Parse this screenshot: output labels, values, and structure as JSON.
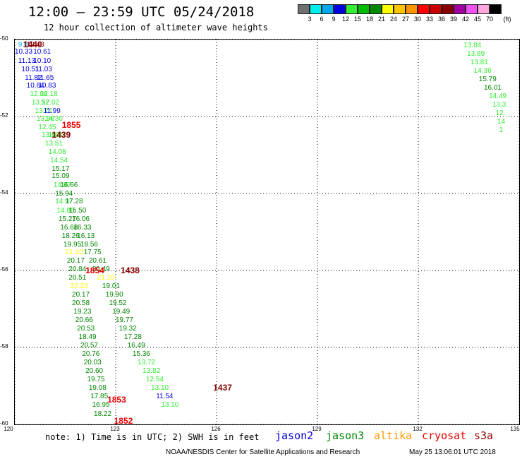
{
  "header": {
    "title": "12:00 — 23:59 UTC 05/24/2018",
    "subtitle": "12 hour collection of altimeter wave heights"
  },
  "colorbar": {
    "unit": "(ft)",
    "swatches": [
      "#707070",
      "#00f0f0",
      "#00a8f0",
      "#0000e0",
      "#33ee33",
      "#00bb00",
      "#008800",
      "#ffff00",
      "#ffc400",
      "#ff9600",
      "#ff0000",
      "#cc0000",
      "#880000",
      "#a000a0",
      "#f050f0",
      "#ffa8e0",
      "#000000"
    ],
    "labels": [
      "3",
      "6",
      "9",
      "12",
      "15",
      "18",
      "21",
      "24",
      "27",
      "30",
      "33",
      "36",
      "39",
      "42",
      "45",
      "70"
    ]
  },
  "axes": {
    "y_ticks": [
      "-50",
      "-52",
      "-54",
      "-56",
      "-58",
      "-60"
    ],
    "y_values": [
      -50,
      -52,
      -54,
      -56,
      -58,
      -60
    ],
    "x_ticks": [
      "120",
      "123",
      "126",
      "129",
      "132",
      "135"
    ],
    "x_values": [
      120,
      123,
      126,
      129,
      132,
      135
    ],
    "lon_range": [
      120,
      135
    ],
    "lat_range": [
      -50,
      -60
    ]
  },
  "values": [
    {
      "lon": 120.1,
      "lat": -50.12,
      "text": "9.00",
      "color": "#00a8f0"
    },
    {
      "lon": 120.35,
      "lat": -50.12,
      "text": "12.43",
      "color": "#880000"
    },
    {
      "lon": 120.0,
      "lat": -50.32,
      "text": "10.33",
      "color": "#0000e0"
    },
    {
      "lon": 120.55,
      "lat": -50.32,
      "text": "10.61",
      "color": "#0000e0"
    },
    {
      "lon": 120.1,
      "lat": -50.55,
      "text": "11.13",
      "color": "#0000e0"
    },
    {
      "lon": 120.55,
      "lat": -50.55,
      "text": "10.10",
      "color": "#0000e0"
    },
    {
      "lon": 120.2,
      "lat": -50.77,
      "text": "10.51",
      "color": "#0000e0"
    },
    {
      "lon": 120.6,
      "lat": -50.77,
      "text": "11.03",
      "color": "#0000e0"
    },
    {
      "lon": 120.3,
      "lat": -50.99,
      "text": "11.82",
      "color": "#0000e0"
    },
    {
      "lon": 120.65,
      "lat": -50.99,
      "text": "11.65",
      "color": "#0000e0"
    },
    {
      "lon": 120.35,
      "lat": -51.2,
      "text": "10.64",
      "color": "#0000e0"
    },
    {
      "lon": 120.7,
      "lat": -51.2,
      "text": "10.83",
      "color": "#0000e0"
    },
    {
      "lon": 120.45,
      "lat": -51.42,
      "text": "12.06",
      "color": "#33ee33"
    },
    {
      "lon": 120.75,
      "lat": -51.42,
      "text": "12.18",
      "color": "#33ee33"
    },
    {
      "lon": 120.5,
      "lat": -51.63,
      "text": "13.57",
      "color": "#33ee33"
    },
    {
      "lon": 120.8,
      "lat": -51.63,
      "text": "12.02",
      "color": "#33ee33"
    },
    {
      "lon": 120.6,
      "lat": -51.85,
      "text": "13.71",
      "color": "#33ee33"
    },
    {
      "lon": 120.85,
      "lat": -51.85,
      "text": "11.99",
      "color": "#0000e0"
    },
    {
      "lon": 120.65,
      "lat": -52.06,
      "text": "13.98",
      "color": "#33ee33"
    },
    {
      "lon": 120.9,
      "lat": -52.06,
      "text": "14.30",
      "color": "#33ee33"
    },
    {
      "lon": 120.7,
      "lat": -52.27,
      "text": "12.45",
      "color": "#33ee33"
    },
    {
      "lon": 120.8,
      "lat": -52.48,
      "text": "13.60",
      "color": "#33ee33"
    },
    {
      "lon": 121.0,
      "lat": -52.48,
      "text": "13.82",
      "color": "#33ee33"
    },
    {
      "lon": 120.9,
      "lat": -52.7,
      "text": "13.51",
      "color": "#33ee33"
    },
    {
      "lon": 121.0,
      "lat": -52.92,
      "text": "14.08",
      "color": "#33ee33"
    },
    {
      "lon": 121.05,
      "lat": -53.13,
      "text": "14.54",
      "color": "#33ee33"
    },
    {
      "lon": 121.1,
      "lat": -53.35,
      "text": "15.17",
      "color": "#008800"
    },
    {
      "lon": 121.1,
      "lat": -53.55,
      "text": "15.09",
      "color": "#008800"
    },
    {
      "lon": 121.15,
      "lat": -53.78,
      "text": "14.87",
      "color": "#33ee33"
    },
    {
      "lon": 121.35,
      "lat": -53.78,
      "text": "16.66",
      "color": "#008800"
    },
    {
      "lon": 121.2,
      "lat": -54.0,
      "text": "15.94",
      "color": "#008800"
    },
    {
      "lon": 121.2,
      "lat": -54.2,
      "text": "14.97",
      "color": "#33ee33"
    },
    {
      "lon": 121.5,
      "lat": -54.2,
      "text": "17.28",
      "color": "#008800"
    },
    {
      "lon": 121.25,
      "lat": -54.44,
      "text": "14.80",
      "color": "#33ee33"
    },
    {
      "lon": 121.6,
      "lat": -54.44,
      "text": "15.50",
      "color": "#008800"
    },
    {
      "lon": 121.3,
      "lat": -54.66,
      "text": "15.27",
      "color": "#008800"
    },
    {
      "lon": 121.7,
      "lat": -54.66,
      "text": "16.06",
      "color": "#008800"
    },
    {
      "lon": 121.35,
      "lat": -54.88,
      "text": "16.68",
      "color": "#008800"
    },
    {
      "lon": 121.75,
      "lat": -54.88,
      "text": "16.33",
      "color": "#008800"
    },
    {
      "lon": 121.4,
      "lat": -55.1,
      "text": "18.26",
      "color": "#008800"
    },
    {
      "lon": 121.85,
      "lat": -55.1,
      "text": "16.13",
      "color": "#008800"
    },
    {
      "lon": 121.45,
      "lat": -55.32,
      "text": "19.95",
      "color": "#008800"
    },
    {
      "lon": 121.95,
      "lat": -55.32,
      "text": "18.56",
      "color": "#008800"
    },
    {
      "lon": 121.5,
      "lat": -55.53,
      "text": "21.10",
      "color": "#ffff00"
    },
    {
      "lon": 122.05,
      "lat": -55.53,
      "text": "17.75",
      "color": "#008800"
    },
    {
      "lon": 121.55,
      "lat": -55.74,
      "text": "20.17",
      "color": "#008800"
    },
    {
      "lon": 122.2,
      "lat": -55.74,
      "text": "20.61",
      "color": "#008800"
    },
    {
      "lon": 121.6,
      "lat": -55.96,
      "text": "20.84",
      "color": "#008800"
    },
    {
      "lon": 122.3,
      "lat": -55.96,
      "text": "20.49",
      "color": "#008800"
    },
    {
      "lon": 121.6,
      "lat": -56.18,
      "text": "20.51",
      "color": "#008800"
    },
    {
      "lon": 122.45,
      "lat": -56.18,
      "text": "21.10",
      "color": "#ffff00"
    },
    {
      "lon": 121.65,
      "lat": -56.4,
      "text": "22.23",
      "color": "#ffff00"
    },
    {
      "lon": 122.6,
      "lat": -56.4,
      "text": "19.01",
      "color": "#008800"
    },
    {
      "lon": 121.7,
      "lat": -56.62,
      "text": "20.17",
      "color": "#008800"
    },
    {
      "lon": 122.7,
      "lat": -56.62,
      "text": "19.90",
      "color": "#008800"
    },
    {
      "lon": 121.7,
      "lat": -56.84,
      "text": "20.58",
      "color": "#008800"
    },
    {
      "lon": 122.8,
      "lat": -56.84,
      "text": "19.52",
      "color": "#008800"
    },
    {
      "lon": 121.75,
      "lat": -57.06,
      "text": "19.23",
      "color": "#008800"
    },
    {
      "lon": 122.9,
      "lat": -57.06,
      "text": "19.49",
      "color": "#008800"
    },
    {
      "lon": 121.8,
      "lat": -57.28,
      "text": "20.66",
      "color": "#008800"
    },
    {
      "lon": 123.0,
      "lat": -57.28,
      "text": "19.77",
      "color": "#008800"
    },
    {
      "lon": 121.85,
      "lat": -57.5,
      "text": "20.53",
      "color": "#008800"
    },
    {
      "lon": 123.1,
      "lat": -57.5,
      "text": "19.32",
      "color": "#008800"
    },
    {
      "lon": 121.9,
      "lat": -57.72,
      "text": "18.49",
      "color": "#008800"
    },
    {
      "lon": 123.25,
      "lat": -57.72,
      "text": "17.28",
      "color": "#008800"
    },
    {
      "lon": 121.95,
      "lat": -57.94,
      "text": "20.57",
      "color": "#008800"
    },
    {
      "lon": 123.35,
      "lat": -57.94,
      "text": "16.49",
      "color": "#008800"
    },
    {
      "lon": 122.0,
      "lat": -58.16,
      "text": "20.76",
      "color": "#008800"
    },
    {
      "lon": 123.5,
      "lat": -58.16,
      "text": "15.36",
      "color": "#008800"
    },
    {
      "lon": 122.05,
      "lat": -58.38,
      "text": "20.03",
      "color": "#008800"
    },
    {
      "lon": 123.65,
      "lat": -58.38,
      "text": "13.72",
      "color": "#33ee33"
    },
    {
      "lon": 122.1,
      "lat": -58.6,
      "text": "20.60",
      "color": "#008800"
    },
    {
      "lon": 123.8,
      "lat": -58.6,
      "text": "13.82",
      "color": "#33ee33"
    },
    {
      "lon": 122.15,
      "lat": -58.82,
      "text": "19.75",
      "color": "#008800"
    },
    {
      "lon": 123.9,
      "lat": -58.82,
      "text": "12.54",
      "color": "#33ee33"
    },
    {
      "lon": 122.2,
      "lat": -59.04,
      "text": "19.08",
      "color": "#008800"
    },
    {
      "lon": 124.05,
      "lat": -59.04,
      "text": "13.10",
      "color": "#33ee33"
    },
    {
      "lon": 122.25,
      "lat": -59.26,
      "text": "17.85",
      "color": "#008800"
    },
    {
      "lon": 124.2,
      "lat": -59.26,
      "text": "11.54",
      "color": "#0000e0"
    },
    {
      "lon": 122.3,
      "lat": -59.48,
      "text": "16.95",
      "color": "#008800"
    },
    {
      "lon": 124.35,
      "lat": -59.48,
      "text": "13.10",
      "color": "#33ee33"
    },
    {
      "lon": 122.35,
      "lat": -59.72,
      "text": "18.22",
      "color": "#008800"
    },
    {
      "lon": 133.35,
      "lat": -50.15,
      "text": "13.84",
      "color": "#33ee33"
    },
    {
      "lon": 133.45,
      "lat": -50.37,
      "text": "13.89",
      "color": "#33ee33"
    },
    {
      "lon": 133.55,
      "lat": -50.59,
      "text": "13.81",
      "color": "#33ee33"
    },
    {
      "lon": 133.65,
      "lat": -50.81,
      "text": "14.36",
      "color": "#33ee33"
    },
    {
      "lon": 133.8,
      "lat": -51.03,
      "text": "15.79",
      "color": "#008800"
    },
    {
      "lon": 133.95,
      "lat": -51.25,
      "text": "16.01",
      "color": "#008800"
    },
    {
      "lon": 134.1,
      "lat": -51.47,
      "text": "14.49",
      "color": "#33ee33"
    },
    {
      "lon": 134.2,
      "lat": -51.69,
      "text": "13.3",
      "color": "#33ee33"
    },
    {
      "lon": 134.3,
      "lat": -51.91,
      "text": "12.",
      "color": "#33ee33"
    },
    {
      "lon": 134.35,
      "lat": -52.13,
      "text": "14",
      "color": "#33ee33"
    },
    {
      "lon": 134.4,
      "lat": -52.35,
      "text": "1",
      "color": "#33ee33"
    }
  ],
  "times": [
    {
      "lon": 120.25,
      "lat": -50.12,
      "text": "1440",
      "color": "#880000"
    },
    {
      "lon": 121.4,
      "lat": -52.22,
      "text": "1855",
      "color": "#ee0000"
    },
    {
      "lon": 121.1,
      "lat": -52.48,
      "text": "1439",
      "color": "#880000"
    },
    {
      "lon": 122.1,
      "lat": -56.0,
      "text": "1854",
      "color": "#ee0000"
    },
    {
      "lon": 123.15,
      "lat": -56.0,
      "text": "1438",
      "color": "#880000"
    },
    {
      "lon": 122.75,
      "lat": -59.35,
      "text": "1853",
      "color": "#ee0000"
    },
    {
      "lon": 122.95,
      "lat": -59.9,
      "text": "1852",
      "color": "#ee0000"
    },
    {
      "lon": 125.9,
      "lat": -59.05,
      "text": "1437",
      "color": "#880000"
    }
  ],
  "footer": {
    "note": "note: 1) Time is in UTC; 2) SWH is in feet",
    "satellites": [
      {
        "name": "jason2",
        "color": "#0000dd"
      },
      {
        "name": "jason3",
        "color": "#008800"
      },
      {
        "name": "altika",
        "color": "#ff9600"
      },
      {
        "name": "cryosat",
        "color": "#ee0000"
      },
      {
        "name": "s3a",
        "color": "#880000"
      }
    ],
    "credit": "NOAA/NESDIS Center for Satellite Applications and Research",
    "timestamp": "May 25 13:06:01 UTC 2018"
  }
}
